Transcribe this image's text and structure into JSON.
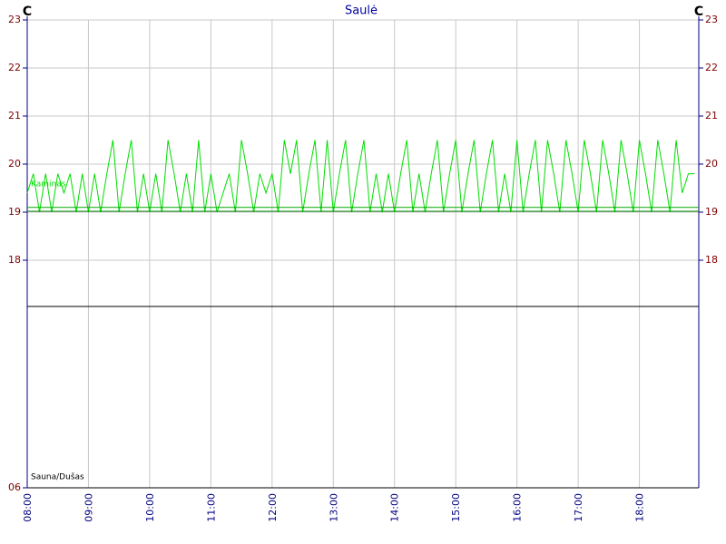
{
  "chart_data": [
    {
      "type": "line",
      "title": "Saulė",
      "ylabel": "C",
      "grid": true,
      "x": [
        8.0,
        8.1,
        8.2,
        8.3,
        8.4,
        8.5,
        8.6,
        8.7,
        8.8,
        8.9,
        9.0,
        9.1,
        9.2,
        9.3,
        9.4,
        9.5,
        9.6,
        9.7,
        9.8,
        9.9,
        10.0,
        10.1,
        10.2,
        10.3,
        10.4,
        10.5,
        10.6,
        10.7,
        10.8,
        10.9,
        11.0,
        11.1,
        11.2,
        11.3,
        11.4,
        11.5,
        11.6,
        11.7,
        11.8,
        11.9,
        12.0,
        12.1,
        12.2,
        12.3,
        12.4,
        12.5,
        12.6,
        12.7,
        12.8,
        12.9,
        13.0,
        13.1,
        13.2,
        13.3,
        13.4,
        13.5,
        13.6,
        13.7,
        13.8,
        13.9,
        14.0,
        14.1,
        14.2,
        14.3,
        14.4,
        14.5,
        14.6,
        14.7,
        14.8,
        14.9,
        15.0,
        15.1,
        15.2,
        15.3,
        15.4,
        15.5,
        15.6,
        15.7,
        15.8,
        15.9,
        16.0,
        16.1,
        16.2,
        16.3,
        16.4,
        16.5,
        16.6,
        16.7,
        16.8,
        16.9,
        17.0,
        17.1,
        17.2,
        17.3,
        17.4,
        17.5,
        17.6,
        17.7,
        17.8,
        17.9,
        18.0,
        18.1,
        18.2,
        18.3,
        18.4,
        18.5,
        18.6,
        18.7,
        18.8,
        18.9
      ],
      "xlim": [
        8,
        18.97
      ],
      "xticks": [
        {
          "value": 8,
          "label": "08:00"
        },
        {
          "value": 9,
          "label": "09:00"
        },
        {
          "value": 10,
          "label": "10:00"
        },
        {
          "value": 11,
          "label": "11:00"
        },
        {
          "value": 12,
          "label": "12:00"
        },
        {
          "value": 13,
          "label": "13:00"
        },
        {
          "value": 14,
          "label": "14:00"
        },
        {
          "value": 15,
          "label": "15:00"
        },
        {
          "value": 16,
          "label": "16:00"
        },
        {
          "value": 17,
          "label": "17:00"
        },
        {
          "value": 18,
          "label": "18:00"
        }
      ],
      "ylim": [
        17,
        23
      ],
      "yticks": [
        18,
        19,
        20,
        21,
        22,
        23
      ],
      "series": [
        {
          "name": "Kaminas",
          "color": "#00dd00",
          "values": [
            19.4,
            19.8,
            19.0,
            19.8,
            19.0,
            19.8,
            19.4,
            19.8,
            19.0,
            19.8,
            19.0,
            19.8,
            19.0,
            19.8,
            20.5,
            19.0,
            19.8,
            20.5,
            19.0,
            19.8,
            19.0,
            19.8,
            19.0,
            20.5,
            19.8,
            19.0,
            19.8,
            19.0,
            20.5,
            19.0,
            19.8,
            19.0,
            19.4,
            19.8,
            19.0,
            20.5,
            19.8,
            19.0,
            19.8,
            19.4,
            19.8,
            19.0,
            20.5,
            19.8,
            20.5,
            19.0,
            19.8,
            20.5,
            19.0,
            20.5,
            19.0,
            19.8,
            20.5,
            19.0,
            19.8,
            20.5,
            19.0,
            19.8,
            19.0,
            19.8,
            19.0,
            19.8,
            20.5,
            19.0,
            19.8,
            19.0,
            19.8,
            20.5,
            19.0,
            19.8,
            20.5,
            19.0,
            19.8,
            20.5,
            19.0,
            19.8,
            20.5,
            19.0,
            19.8,
            19.0,
            20.5,
            19.0,
            19.8,
            20.5,
            19.0,
            20.5,
            19.8,
            19.0,
            20.5,
            19.8,
            19.0,
            20.5,
            19.8,
            19.0,
            20.5,
            19.8,
            19.0,
            20.5,
            19.8,
            19.0,
            20.5,
            19.8,
            19.0,
            20.5,
            19.8,
            19.0,
            20.5,
            19.4,
            19.8,
            19.8
          ]
        },
        {
          "color": "#00aa00",
          "x": [
            8,
            18.97
          ],
          "values": [
            19.1,
            19.1
          ]
        },
        {
          "color": "#008800",
          "x": [
            8,
            18.97
          ],
          "values": [
            19.02,
            19.02
          ]
        }
      ]
    },
    {
      "type": "line",
      "ylim": [
        6,
        10
      ],
      "yticks": [
        {
          "value": 6,
          "label": "06"
        }
      ],
      "series": [
        {
          "name": "Sauna/Dušas",
          "color": "#000000"
        }
      ]
    }
  ]
}
